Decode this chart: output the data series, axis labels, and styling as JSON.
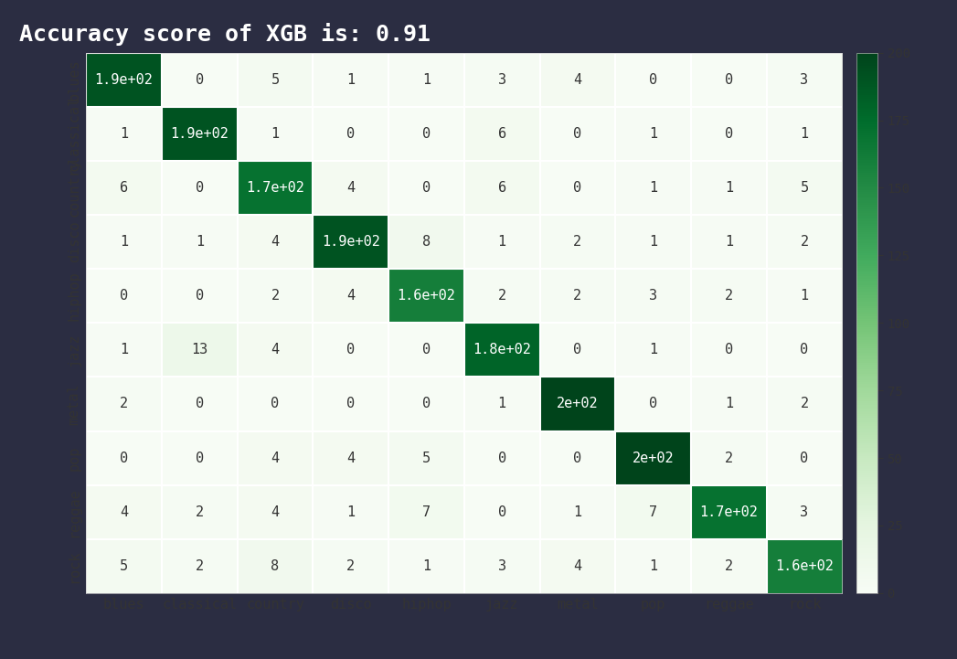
{
  "title": "Accuracy score of XGB is: 0.91",
  "labels": [
    "blues",
    "classical",
    "country",
    "disco",
    "hiphop",
    "jazz",
    "metal",
    "pop",
    "reggae",
    "rock"
  ],
  "matrix": [
    [
      190,
      0,
      5,
      1,
      1,
      3,
      4,
      0,
      0,
      3
    ],
    [
      1,
      190,
      1,
      0,
      0,
      6,
      0,
      1,
      0,
      1
    ],
    [
      6,
      0,
      170,
      4,
      0,
      6,
      0,
      1,
      1,
      5
    ],
    [
      1,
      1,
      4,
      190,
      8,
      1,
      2,
      1,
      1,
      2
    ],
    [
      0,
      0,
      2,
      4,
      160,
      2,
      2,
      3,
      2,
      1
    ],
    [
      1,
      13,
      4,
      0,
      0,
      180,
      0,
      1,
      0,
      0
    ],
    [
      2,
      0,
      0,
      0,
      0,
      1,
      200,
      0,
      1,
      2
    ],
    [
      0,
      0,
      4,
      4,
      5,
      0,
      0,
      200,
      2,
      0
    ],
    [
      4,
      2,
      4,
      1,
      7,
      0,
      1,
      7,
      170,
      3
    ],
    [
      5,
      2,
      8,
      2,
      1,
      3,
      4,
      1,
      2,
      160
    ]
  ],
  "background_color": "#2b2d42",
  "plot_bg_color": "#ffffff",
  "title_color": "#ffffff",
  "title_fontsize": 18,
  "cmap": "Greens",
  "colorbar_max": 200,
  "text_color_light": "white",
  "text_color_dark": "#333333",
  "font_family": "monospace",
  "colorbar_tick_color": "#333333",
  "axis_label_color": "#333333",
  "label_fontsize": 11,
  "cell_fontsize": 11
}
